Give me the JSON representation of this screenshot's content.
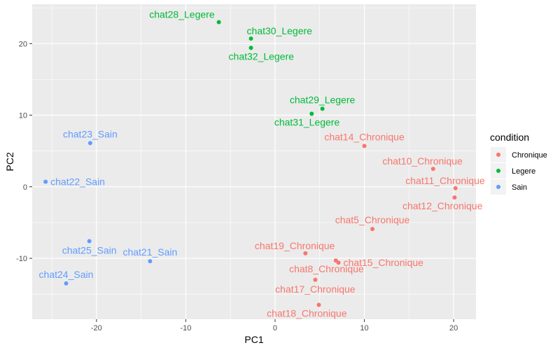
{
  "chart_data": {
    "type": "scatter",
    "title": "",
    "xlabel": "PC1",
    "ylabel": "PC2",
    "xlim": [
      -27.2,
      22.5
    ],
    "ylim": [
      -18.5,
      25.5
    ],
    "xticks": [
      -20,
      -10,
      0,
      10,
      20
    ],
    "yticks": [
      -10,
      0,
      10,
      20
    ],
    "grid": true,
    "legend": {
      "title": "condition",
      "position": "right",
      "entries": [
        {
          "name": "Chronique",
          "color": "#F8766D"
        },
        {
          "name": "Legere",
          "color": "#00BA38"
        },
        {
          "name": "Sain",
          "color": "#619CFF"
        }
      ]
    },
    "points": [
      {
        "label": "chat28_Legere",
        "condition": "Legere",
        "x": -6.3,
        "y": 23.0,
        "label_pos": "topleft"
      },
      {
        "label": "chat30_Legere",
        "condition": "Legere",
        "x": -2.7,
        "y": 20.7,
        "label_pos": "topright"
      },
      {
        "label": "chat32_Legere",
        "condition": "Legere",
        "x": -2.7,
        "y": 19.4,
        "label_pos": "belowright"
      },
      {
        "label": "chat29_Legere",
        "condition": "Legere",
        "x": 5.3,
        "y": 10.9,
        "label_pos": "above"
      },
      {
        "label": "chat31_Legere",
        "condition": "Legere",
        "x": 4.1,
        "y": 10.2,
        "label_pos": "belowleft"
      },
      {
        "label": "chat14_Chronique",
        "condition": "Chronique",
        "x": 10.0,
        "y": 5.7,
        "label_pos": "above"
      },
      {
        "label": "chat10_Chronique",
        "condition": "Chronique",
        "x": 17.7,
        "y": 2.5,
        "label_pos": "aboveleft"
      },
      {
        "label": "chat11_Chronique",
        "condition": "Chronique",
        "x": 20.2,
        "y": -0.2,
        "label_pos": "aboveleft"
      },
      {
        "label": "chat12_Chronique",
        "condition": "Chronique",
        "x": 20.1,
        "y": -1.5,
        "label_pos": "belowleft"
      },
      {
        "label": "chat5_Chronique",
        "condition": "Chronique",
        "x": 10.9,
        "y": -5.9,
        "label_pos": "above"
      },
      {
        "label": "chat19_Chronique",
        "condition": "Chronique",
        "x": 3.4,
        "y": -9.3,
        "label_pos": "aboveleft"
      },
      {
        "label": "chat15_Chronique",
        "condition": "Chronique",
        "x": 7.1,
        "y": -10.6,
        "label_pos": "right"
      },
      {
        "label": "chat8_Chronique",
        "condition": "Chronique",
        "x": 6.8,
        "y": -10.3,
        "label_pos": "belowleft"
      },
      {
        "label": "chat17_Chronique",
        "condition": "Chronique",
        "x": 4.5,
        "y": -13.0,
        "label_pos": "below"
      },
      {
        "label": "chat18_Chronique",
        "condition": "Chronique",
        "x": 4.9,
        "y": -16.5,
        "label_pos": "belowleft"
      },
      {
        "label": "chat23_Sain",
        "condition": "Sain",
        "x": -20.7,
        "y": 6.1,
        "label_pos": "above"
      },
      {
        "label": "chat22_Sain",
        "condition": "Sain",
        "x": -25.7,
        "y": 0.7,
        "label_pos": "right"
      },
      {
        "label": "chat25_Sain",
        "condition": "Sain",
        "x": -20.8,
        "y": -7.6,
        "label_pos": "below"
      },
      {
        "label": "chat21_Sain",
        "condition": "Sain",
        "x": -14.0,
        "y": -10.4,
        "label_pos": "above"
      },
      {
        "label": "chat24_Sain",
        "condition": "Sain",
        "x": -23.4,
        "y": -13.5,
        "label_pos": "above"
      }
    ]
  }
}
